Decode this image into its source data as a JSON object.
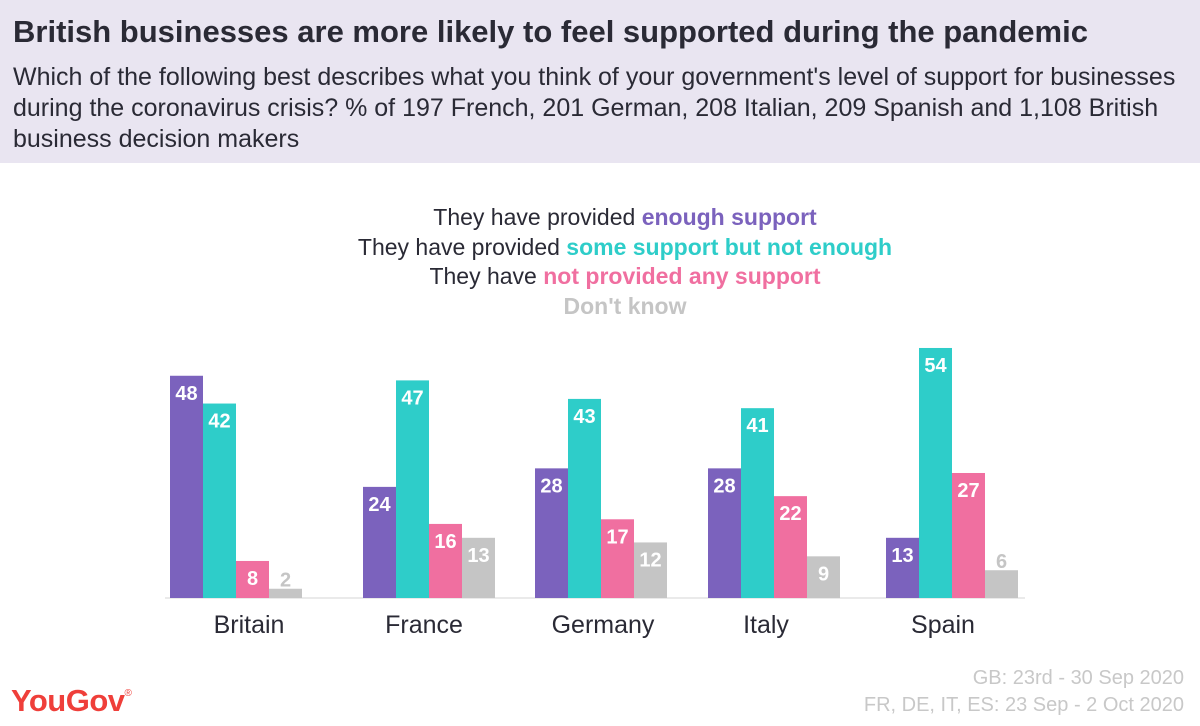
{
  "header": {
    "title": "British businesses are more likely to feel supported during the pandemic",
    "subtitle": "Which of the following best describes what you think of your government's level of support for businesses during the coronavirus crisis? % of 197 French, 201 German, 208 Italian, 209 Spanish and 1,108 British business decision makers"
  },
  "legend": [
    {
      "prefix": "They have provided ",
      "highlight": "enough support"
    },
    {
      "prefix": "They have provided ",
      "highlight": "some support but not enough"
    },
    {
      "prefix": "They have ",
      "highlight": "not provided any support"
    },
    {
      "prefix": "",
      "highlight": "Don't know"
    }
  ],
  "colors": {
    "enough": "#7b62bd",
    "some": "#2ecdc9",
    "none": "#f06fa0",
    "dont_know": "#c5c5c5",
    "brand": "#ef3f3a"
  },
  "chart_data": {
    "type": "bar",
    "categories": [
      "Britain",
      "France",
      "Germany",
      "Italy",
      "Spain"
    ],
    "series": [
      {
        "name": "They have provided enough support",
        "values": [
          48,
          24,
          28,
          28,
          13
        ]
      },
      {
        "name": "They have provided some support but not enough",
        "values": [
          42,
          47,
          43,
          41,
          54
        ]
      },
      {
        "name": "They have not provided any support",
        "values": [
          8,
          16,
          17,
          22,
          27
        ]
      },
      {
        "name": "Don't know",
        "values": [
          2,
          13,
          12,
          9,
          6
        ]
      }
    ],
    "ylim": [
      0,
      56
    ],
    "grid": false,
    "legend_position": "top-center"
  },
  "footer": {
    "logo": "YouGov",
    "logo_mark": "®",
    "source_lines": [
      "GB: 23rd - 30 Sep 2020",
      "FR, DE, IT, ES: 23 Sep - 2 Oct 2020"
    ]
  }
}
